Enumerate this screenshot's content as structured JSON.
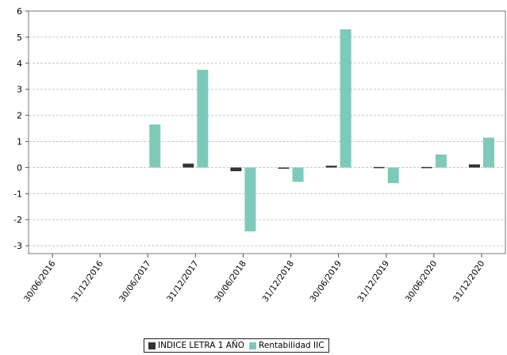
{
  "chart_data": {
    "type": "bar",
    "categories": [
      "30/06/2016",
      "31/12/2016",
      "30/06/2017",
      "31/12/2017",
      "30/06/2018",
      "31/12/2018",
      "30/06/2019",
      "31/12/2019",
      "30/06/2020",
      "31/12/2020"
    ],
    "series": [
      {
        "name": "INDICE LETRA 1 AÑO",
        "color": "#333333",
        "values": [
          null,
          null,
          null,
          0.15,
          -0.14,
          -0.03,
          0.07,
          0.02,
          0.02,
          0.12
        ]
      },
      {
        "name": "Rentabilidad IIC",
        "color": "#7ecab9",
        "values": [
          null,
          null,
          1.65,
          3.75,
          -2.45,
          -0.55,
          5.3,
          -0.6,
          0.5,
          1.15
        ]
      }
    ],
    "yticks": [
      6,
      5,
      4,
      3,
      2,
      1,
      0,
      -1,
      -2,
      -3
    ],
    "ylim": [
      -3.3,
      6
    ],
    "grid": true,
    "legend_position": "bottom"
  }
}
